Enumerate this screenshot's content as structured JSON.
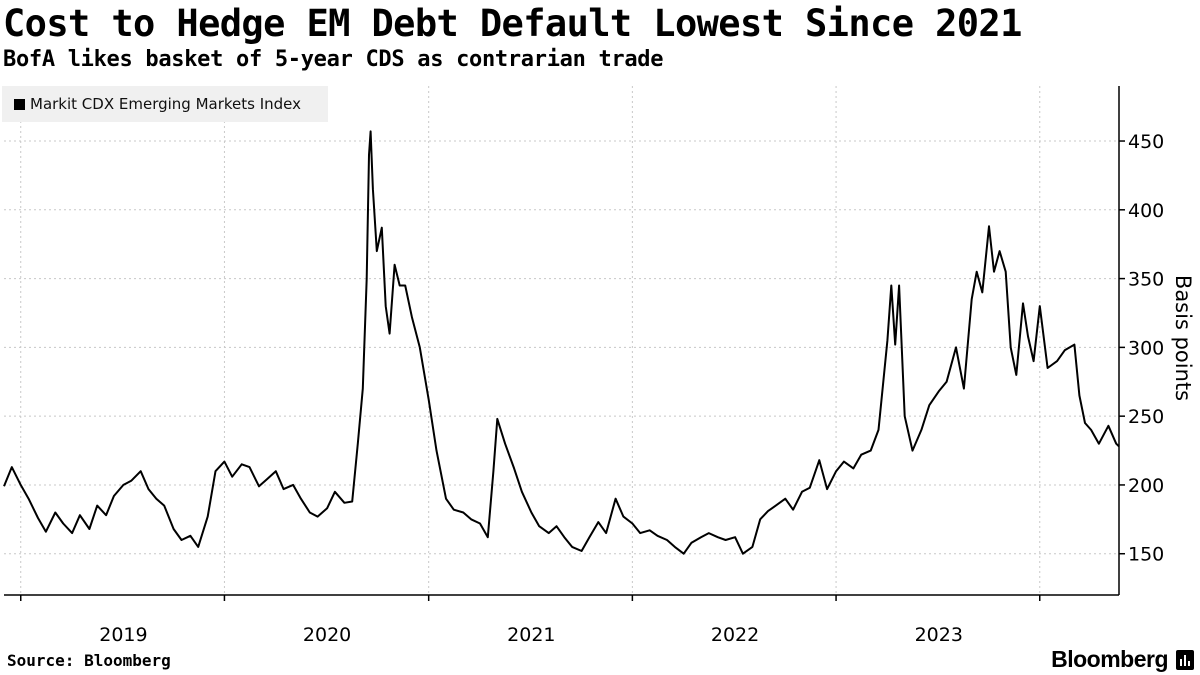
{
  "header": {
    "title": "Cost to Hedge EM Debt Default Lowest Since 2021",
    "subtitle": "BofA likes basket of 5-year CDS as contrarian trade"
  },
  "footer": {
    "source": "Source: Bloomberg",
    "brand": "Bloomberg"
  },
  "colors": {
    "line": "#000000",
    "grid": "#c8c8c8",
    "legend_bg": "#f0f0f0"
  },
  "chart_data": {
    "type": "line",
    "title": "Cost to Hedge EM Debt Default Lowest Since 2021",
    "subtitle": "BofA likes basket of 5-year CDS as contrarian trade",
    "ylabel": "Basis points",
    "xlabel": "",
    "ylim": [
      120,
      490
    ],
    "xlim": [
      "2018-06-01",
      "2023-11-20"
    ],
    "y_ticks": [
      150,
      200,
      250,
      300,
      350,
      400,
      450
    ],
    "x_ticks": [
      "2019",
      "2020",
      "2021",
      "2022",
      "2023"
    ],
    "grid": true,
    "y_axis_side": "right",
    "legend_position": "top-left",
    "series": [
      {
        "name": "Markit CDX Emerging Markets Index",
        "color": "#000000",
        "points": [
          [
            "2018-06-01",
            199
          ],
          [
            "2018-06-15",
            213
          ],
          [
            "2018-07-01",
            200
          ],
          [
            "2018-07-15",
            190
          ],
          [
            "2018-08-01",
            176
          ],
          [
            "2018-08-15",
            166
          ],
          [
            "2018-09-01",
            180
          ],
          [
            "2018-09-15",
            172
          ],
          [
            "2018-10-01",
            165
          ],
          [
            "2018-10-15",
            178
          ],
          [
            "2018-11-01",
            168
          ],
          [
            "2018-11-15",
            185
          ],
          [
            "2018-12-01",
            178
          ],
          [
            "2018-12-15",
            192
          ],
          [
            "2019-01-01",
            200
          ],
          [
            "2019-01-15",
            203
          ],
          [
            "2019-02-01",
            210
          ],
          [
            "2019-02-15",
            197
          ],
          [
            "2019-03-01",
            190
          ],
          [
            "2019-03-15",
            185
          ],
          [
            "2019-04-01",
            168
          ],
          [
            "2019-04-15",
            160
          ],
          [
            "2019-05-01",
            163
          ],
          [
            "2019-05-15",
            155
          ],
          [
            "2019-06-01",
            177
          ],
          [
            "2019-06-15",
            210
          ],
          [
            "2019-07-01",
            217
          ],
          [
            "2019-07-15",
            206
          ],
          [
            "2019-08-01",
            215
          ],
          [
            "2019-08-15",
            213
          ],
          [
            "2019-09-01",
            199
          ],
          [
            "2019-09-15",
            204
          ],
          [
            "2019-10-01",
            210
          ],
          [
            "2019-10-15",
            197
          ],
          [
            "2019-11-01",
            200
          ],
          [
            "2019-11-15",
            190
          ],
          [
            "2019-12-01",
            180
          ],
          [
            "2019-12-15",
            177
          ],
          [
            "2020-01-01",
            183
          ],
          [
            "2020-01-15",
            195
          ],
          [
            "2020-02-01",
            187
          ],
          [
            "2020-02-15",
            188
          ],
          [
            "2020-02-25",
            230
          ],
          [
            "2020-03-05",
            270
          ],
          [
            "2020-03-12",
            350
          ],
          [
            "2020-03-16",
            440
          ],
          [
            "2020-03-19",
            457
          ],
          [
            "2020-03-23",
            415
          ],
          [
            "2020-03-30",
            370
          ],
          [
            "2020-04-08",
            387
          ],
          [
            "2020-04-15",
            330
          ],
          [
            "2020-04-22",
            310
          ],
          [
            "2020-05-01",
            360
          ],
          [
            "2020-05-10",
            345
          ],
          [
            "2020-05-20",
            345
          ],
          [
            "2020-06-01",
            322
          ],
          [
            "2020-06-15",
            300
          ],
          [
            "2020-07-01",
            262
          ],
          [
            "2020-07-15",
            225
          ],
          [
            "2020-08-01",
            190
          ],
          [
            "2020-08-15",
            182
          ],
          [
            "2020-09-01",
            180
          ],
          [
            "2020-09-15",
            175
          ],
          [
            "2020-10-01",
            172
          ],
          [
            "2020-10-15",
            162
          ],
          [
            "2020-10-25",
            210
          ],
          [
            "2020-11-01",
            248
          ],
          [
            "2020-11-15",
            230
          ],
          [
            "2020-12-01",
            212
          ],
          [
            "2020-12-15",
            195
          ],
          [
            "2021-01-01",
            180
          ],
          [
            "2021-01-15",
            170
          ],
          [
            "2021-02-01",
            165
          ],
          [
            "2021-02-15",
            170
          ],
          [
            "2021-03-01",
            162
          ],
          [
            "2021-03-15",
            155
          ],
          [
            "2021-04-01",
            152
          ],
          [
            "2021-04-15",
            162
          ],
          [
            "2021-05-01",
            173
          ],
          [
            "2021-05-15",
            165
          ],
          [
            "2021-06-01",
            190
          ],
          [
            "2021-06-15",
            177
          ],
          [
            "2021-07-01",
            172
          ],
          [
            "2021-07-15",
            165
          ],
          [
            "2021-08-01",
            167
          ],
          [
            "2021-08-15",
            163
          ],
          [
            "2021-09-01",
            160
          ],
          [
            "2021-09-15",
            155
          ],
          [
            "2021-10-01",
            150
          ],
          [
            "2021-10-15",
            158
          ],
          [
            "2021-11-01",
            162
          ],
          [
            "2021-11-15",
            165
          ],
          [
            "2021-12-01",
            162
          ],
          [
            "2021-12-15",
            160
          ],
          [
            "2022-01-01",
            162
          ],
          [
            "2022-01-15",
            150
          ],
          [
            "2022-02-01",
            155
          ],
          [
            "2022-02-15",
            175
          ],
          [
            "2022-03-01",
            181
          ],
          [
            "2022-03-15",
            185
          ],
          [
            "2022-04-01",
            190
          ],
          [
            "2022-04-15",
            182
          ],
          [
            "2022-05-01",
            195
          ],
          [
            "2022-05-15",
            198
          ],
          [
            "2022-06-01",
            218
          ],
          [
            "2022-06-15",
            197
          ],
          [
            "2022-07-01",
            210
          ],
          [
            "2022-07-15",
            217
          ],
          [
            "2022-08-01",
            212
          ],
          [
            "2022-08-15",
            222
          ],
          [
            "2022-09-01",
            225
          ],
          [
            "2022-09-15",
            240
          ],
          [
            "2022-10-01",
            305
          ],
          [
            "2022-10-08",
            345
          ],
          [
            "2022-10-15",
            302
          ],
          [
            "2022-10-22",
            345
          ],
          [
            "2022-11-01",
            250
          ],
          [
            "2022-11-15",
            225
          ],
          [
            "2022-12-01",
            240
          ],
          [
            "2022-12-15",
            258
          ],
          [
            "2023-01-01",
            268
          ],
          [
            "2023-01-15",
            275
          ],
          [
            "2023-02-01",
            300
          ],
          [
            "2023-02-15",
            270
          ],
          [
            "2023-03-01",
            335
          ],
          [
            "2023-03-10",
            355
          ],
          [
            "2023-03-20",
            340
          ],
          [
            "2023-04-01",
            388
          ],
          [
            "2023-04-10",
            355
          ],
          [
            "2023-04-20",
            370
          ],
          [
            "2023-05-01",
            355
          ],
          [
            "2023-05-10",
            300
          ],
          [
            "2023-05-20",
            280
          ],
          [
            "2023-06-01",
            332
          ],
          [
            "2023-06-10",
            308
          ],
          [
            "2023-06-20",
            290
          ],
          [
            "2023-07-01",
            330
          ],
          [
            "2023-07-15",
            285
          ],
          [
            "2023-08-01",
            290
          ],
          [
            "2023-08-15",
            298
          ],
          [
            "2023-09-01",
            302
          ],
          [
            "2023-09-10",
            265
          ],
          [
            "2023-09-20",
            245
          ],
          [
            "2023-10-01",
            240
          ],
          [
            "2023-10-15",
            230
          ],
          [
            "2023-11-01",
            243
          ],
          [
            "2023-11-15",
            230
          ],
          [
            "2023-11-20",
            228
          ]
        ]
      }
    ]
  }
}
